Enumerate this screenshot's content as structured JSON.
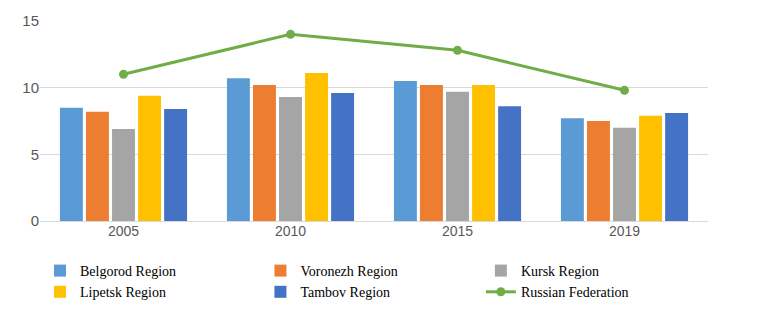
{
  "chart_data": {
    "type": "bar",
    "categories": [
      "2005",
      "2010",
      "2015",
      "2019"
    ],
    "series": [
      {
        "name": "Belgorod Region",
        "color": "#5B9BD5",
        "values": [
          8.5,
          10.7,
          10.5,
          7.7
        ]
      },
      {
        "name": "Voronezh Region",
        "color": "#ED7D31",
        "values": [
          8.2,
          10.2,
          10.2,
          7.5
        ]
      },
      {
        "name": "Kursk Region",
        "color": "#A5A5A5",
        "values": [
          6.9,
          9.3,
          9.7,
          7.0
        ]
      },
      {
        "name": "Lipetsk Region",
        "color": "#FFC000",
        "values": [
          9.4,
          11.1,
          10.2,
          7.9
        ]
      },
      {
        "name": "Tambov Region",
        "color": "#4472C4",
        "values": [
          8.4,
          9.6,
          8.6,
          8.1
        ]
      },
      {
        "name": "Russian Federation",
        "color": "#70AD47",
        "type": "line",
        "marker": "circle",
        "values": [
          11.0,
          14.0,
          12.8,
          9.8
        ]
      }
    ],
    "ylim": [
      0,
      15
    ],
    "yticks": [
      0,
      5,
      10,
      15
    ],
    "grid": true,
    "legend": "bottom"
  }
}
